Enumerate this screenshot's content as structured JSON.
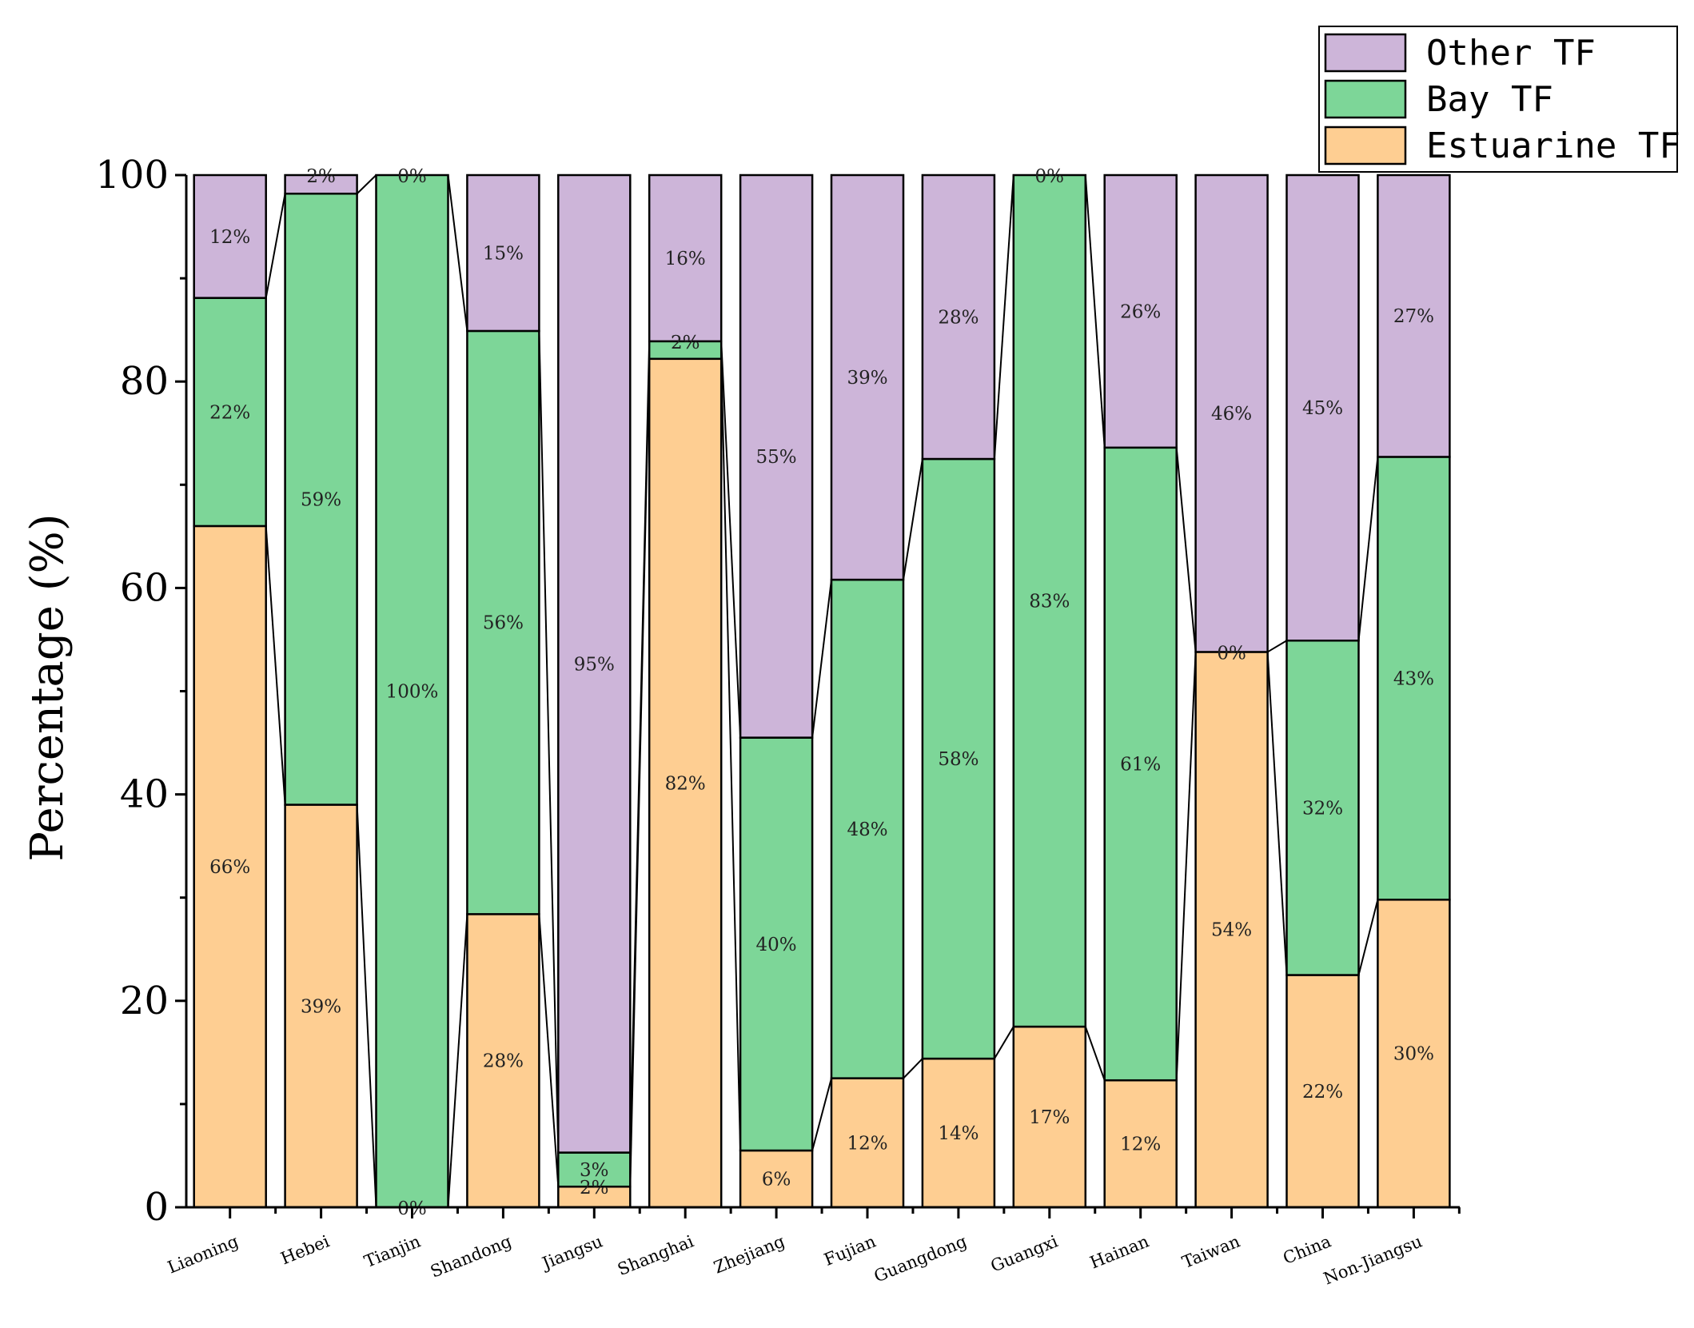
{
  "chart_data": {
    "type": "bar",
    "stacked": true,
    "ylabel": "Percentage (%)",
    "xlabel": "",
    "ylim": [
      0,
      100
    ],
    "yticks": [
      0,
      20,
      40,
      60,
      80,
      100
    ],
    "grid": false,
    "legend_position": "top-right",
    "categories": [
      "Liaoning",
      "Hebei",
      "Tianjin",
      "Shandong",
      "Jiangsu",
      "Shanghai",
      "Zhejiang",
      "Fujian",
      "Guangdong",
      "Guangxi",
      "Hainan",
      "Taiwan",
      "China",
      "Non-Jiangsu"
    ],
    "series": [
      {
        "name": "Estuarine TF",
        "color": "#FECE92",
        "values": [
          66,
          39,
          0,
          28.4,
          2,
          82.2,
          5.5,
          12.5,
          14.4,
          17.5,
          12.3,
          53.8,
          22.5,
          29.8
        ],
        "labels": [
          "66%",
          "39%",
          "0%",
          "28%",
          "2%",
          "82%",
          "6%",
          "12%",
          "14%",
          "17%",
          "12%",
          "54%",
          "22%",
          "30%"
        ]
      },
      {
        "name": "Bay TF",
        "color": "#7DD698",
        "values": [
          22.1,
          59.2,
          100,
          56.5,
          3.3,
          1.7,
          40,
          48.3,
          58.1,
          82.5,
          61.3,
          0,
          32.4,
          42.9
        ],
        "labels": [
          "22%",
          "59%",
          "100%",
          "56%",
          "3%",
          "2%",
          "40%",
          "48%",
          "58%",
          "83%",
          "61%",
          "0%",
          "32%",
          "43%"
        ]
      },
      {
        "name": "Other TF",
        "color": "#CDB5D9",
        "values": [
          11.9,
          1.8,
          0,
          15.1,
          94.7,
          16.1,
          54.5,
          39.2,
          27.5,
          0,
          26.4,
          46.2,
          45.1,
          27.3
        ],
        "labels": [
          "12%",
          "2%",
          "0%",
          "15%",
          "95%",
          "16%",
          "55%",
          "39%",
          "28%",
          "0%",
          "26%",
          "46%",
          "45%",
          "27%"
        ]
      }
    ]
  }
}
